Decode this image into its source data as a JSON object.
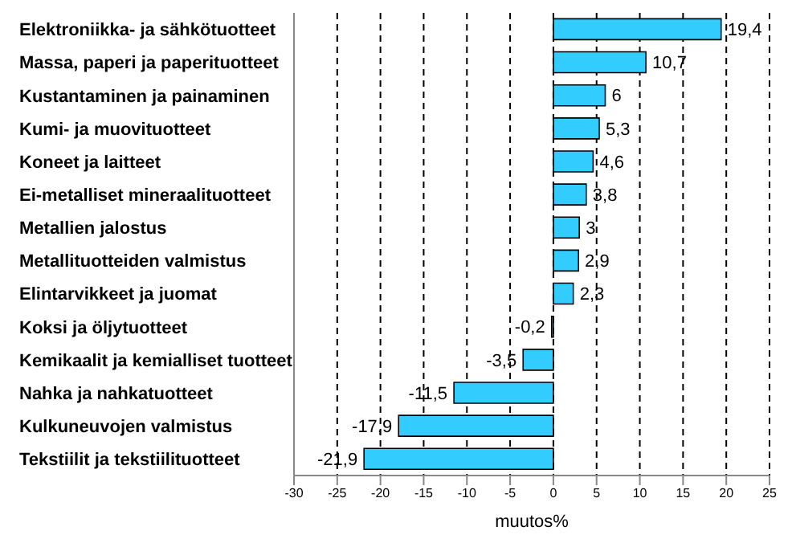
{
  "chart_data": {
    "type": "bar",
    "orientation": "horizontal",
    "xlabel": "muutos%",
    "categories": [
      "Elektroniikka- ja sähkötuotteet",
      "Massa, paperi ja paperituotteet",
      "Kustantaminen ja painaminen",
      "Kumi- ja muovituotteet",
      "Koneet ja laitteet",
      "Ei-metalliset mineraalituotteet",
      "Metallien jalostus",
      "Metallituotteiden valmistus",
      "Elintarvikkeet ja juomat",
      "Koksi ja öljytuotteet",
      "Kemikaalit ja kemialliset tuotteet",
      "Nahka ja nahkatuotteet",
      "Kulkuneuvojen valmistus",
      "Tekstiilit ja tekstiilituotteet"
    ],
    "values": [
      19.4,
      10.7,
      6,
      5.3,
      4.6,
      3.8,
      3,
      2.9,
      2.3,
      -0.2,
      -3.5,
      -11.5,
      -17.9,
      -21.9
    ],
    "value_labels": [
      "19,4",
      "10,7",
      "6",
      "5,3",
      "4,6",
      "3,8",
      "3",
      "2,9",
      "2,3",
      "-0,2",
      "-3,5",
      "-11,5",
      "-17,9",
      "-21,9"
    ],
    "color": "#33ccff",
    "xlim": [
      -30,
      25
    ],
    "xticks": [
      -30,
      -25,
      -20,
      -15,
      -10,
      -5,
      0,
      5,
      10,
      15,
      20,
      25
    ],
    "grid": "x"
  }
}
